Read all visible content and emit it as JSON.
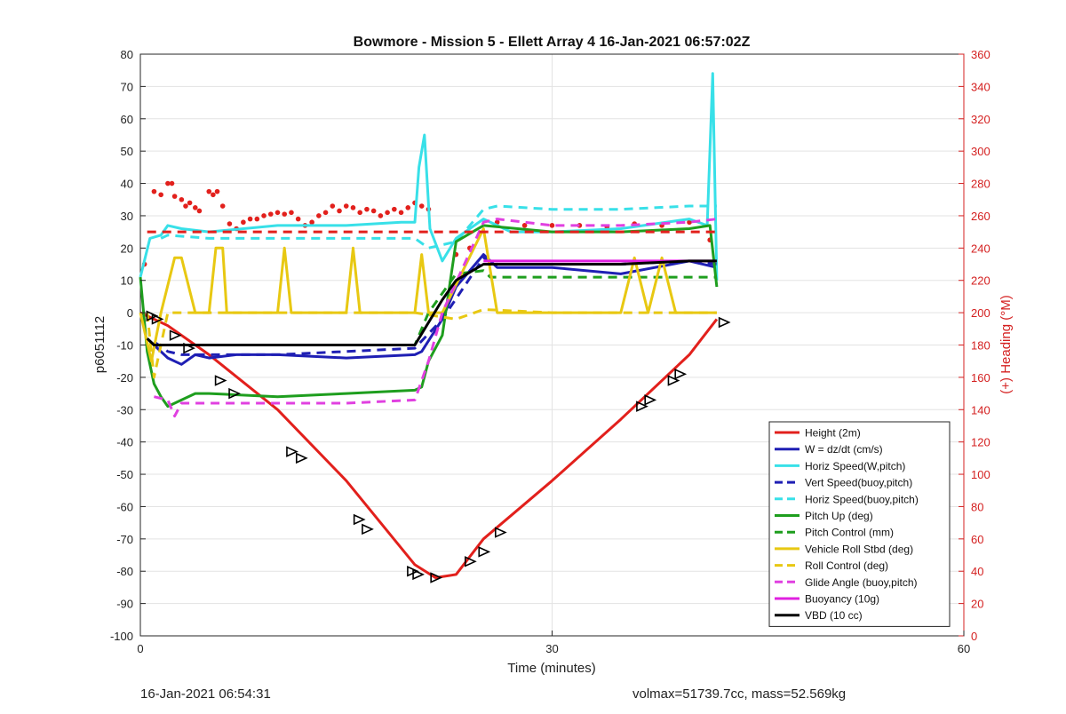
{
  "chart_data": {
    "type": "line",
    "title": "Bowmore - Mission 5 - Ellett Array 4 16-Jan-2021 06:57:02Z",
    "xlabel": "Time (minutes)",
    "ylabel": "p6051112",
    "y2label": "(+) Heading (°M)",
    "xlim": [
      0,
      60
    ],
    "ylim": [
      -100,
      80
    ],
    "y2lim": [
      0,
      360
    ],
    "xticks": [
      "0",
      "30",
      "60"
    ],
    "yticks": [
      "80",
      "70",
      "60",
      "50",
      "40",
      "30",
      "20",
      "10",
      "0",
      "-10",
      "-20",
      "-30",
      "-40",
      "-50",
      "-60",
      "-70",
      "-80",
      "-90",
      "-100"
    ],
    "y2ticks": [
      "360",
      "340",
      "320",
      "300",
      "280",
      "260",
      "240",
      "220",
      "200",
      "180",
      "160",
      "140",
      "120",
      "100",
      "80",
      "60",
      "40",
      "20",
      "0"
    ],
    "grid": true,
    "legend_position": "lower-right",
    "series": [
      {
        "name": "Height (2m)",
        "color": "#e2201c",
        "style": "solid",
        "x": [
          0,
          2,
          5,
          10,
          15,
          20,
          21.5,
          23,
          25,
          30,
          35,
          40,
          42
        ],
        "y": [
          0,
          -4,
          -13,
          -30,
          -52,
          -78,
          -82,
          -81,
          -70,
          -52,
          -33,
          -13,
          -2
        ]
      },
      {
        "name": "W = dz/dt (cm/s)",
        "color": "#1f1fb4",
        "style": "solid",
        "x": [
          0.5,
          1,
          2,
          3,
          4,
          5,
          7,
          10,
          15,
          20,
          20.5,
          22,
          23,
          25,
          26,
          30,
          35,
          40,
          42
        ],
        "y": [
          -8,
          -10,
          -14,
          -16,
          -13,
          -14,
          -13,
          -13,
          -14,
          -13,
          -12,
          -2,
          8,
          18,
          14,
          14,
          12,
          16,
          14
        ]
      },
      {
        "name": "Horiz Speed(W,pitch)",
        "color": "#38e0e8",
        "style": "solid",
        "x": [
          0,
          0.7,
          1.5,
          2,
          3,
          5,
          10,
          15,
          19,
          20,
          20.3,
          20.7,
          21.1,
          22,
          23,
          25,
          27,
          30,
          35,
          40,
          41.3,
          41.7,
          42
        ],
        "y": [
          11,
          23,
          24,
          27,
          26,
          25,
          27,
          27,
          28,
          28,
          45,
          55,
          26,
          16,
          23,
          29,
          25,
          25,
          26,
          29,
          27,
          74,
          10
        ]
      },
      {
        "name": "Vert Speed(buoy,pitch)",
        "color": "#1f1fb4",
        "style": "dashed",
        "x": [
          1,
          2,
          3,
          5,
          10,
          15,
          20,
          22,
          25,
          26,
          30,
          35,
          40,
          42
        ],
        "y": [
          -9,
          -12,
          -13,
          -13,
          -13,
          -12,
          -11,
          -2,
          17,
          15,
          15,
          15,
          16,
          15
        ]
      },
      {
        "name": "Horiz Speed(buoy,pitch)",
        "color": "#38e0e8",
        "style": "dashed",
        "x": [
          1.5,
          2,
          5,
          10,
          15,
          20,
          21,
          23,
          25,
          26,
          30,
          35,
          40,
          42
        ],
        "y": [
          23,
          24,
          23,
          23,
          23,
          23,
          20,
          22,
          32,
          33,
          32,
          32,
          33,
          33
        ]
      },
      {
        "name": "Pitch Up (deg)",
        "color": "#1e9e1e",
        "style": "solid",
        "x": [
          0,
          0.5,
          1,
          1.5,
          2,
          3,
          4,
          5,
          10,
          15,
          20,
          20.5,
          21,
          22,
          23,
          25,
          30,
          35,
          40,
          41.5,
          42
        ],
        "y": [
          11,
          -12,
          -22,
          -26,
          -29,
          -27,
          -25,
          -25,
          -26,
          -25,
          -24,
          -23,
          -15,
          -7,
          22,
          27,
          25,
          25,
          26,
          27,
          8
        ]
      },
      {
        "name": "Pitch Control (mm)",
        "color": "#1e9e1e",
        "style": "dashed",
        "x": [
          1,
          2,
          5,
          10,
          15,
          20,
          21,
          23,
          25,
          25.5,
          30,
          35,
          40,
          42
        ],
        "y": [
          -10,
          -10,
          -10,
          -10,
          -10,
          -10,
          0,
          12,
          13,
          11,
          11,
          11,
          11,
          11
        ]
      },
      {
        "name": "Vehicle Roll Stbd (deg)",
        "color": "#e8c812",
        "style": "solid",
        "x": [
          0,
          0.8,
          1.5,
          2.5,
          3,
          4,
          5,
          5.5,
          6,
          6.3,
          7,
          10,
          10.5,
          11,
          15,
          15.5,
          16,
          20,
          20.5,
          21,
          22,
          25,
          26,
          30,
          35,
          36,
          37,
          38,
          39,
          40,
          42
        ],
        "y": [
          0,
          -15,
          0,
          17,
          17,
          0,
          0,
          20,
          20,
          0,
          0,
          0,
          20,
          0,
          0,
          20,
          0,
          0,
          18,
          0,
          0,
          26,
          0,
          0,
          0,
          17,
          0,
          17,
          0,
          0,
          0
        ]
      },
      {
        "name": "Roll Control (deg)",
        "color": "#e8c812",
        "style": "dashed",
        "x": [
          0.5,
          1,
          2,
          3,
          5,
          10,
          15,
          20,
          23,
          25,
          30,
          35,
          40,
          42
        ],
        "y": [
          0,
          -20,
          0,
          0,
          0,
          0,
          0,
          0,
          -2,
          1,
          0,
          0,
          0,
          0
        ]
      },
      {
        "name": "Glide Angle (buoy,pitch)",
        "color": "#e040e0",
        "style": "dashed",
        "x": [
          1,
          2,
          2.5,
          3,
          5,
          10,
          15,
          20,
          21,
          22,
          25,
          26,
          30,
          35,
          40,
          42
        ],
        "y": [
          -26,
          -27,
          -32,
          -28,
          -28,
          -28,
          -28,
          -27,
          -15,
          0,
          28,
          29,
          27,
          27,
          28,
          29
        ]
      },
      {
        "name": "Buoyancy (10g)",
        "color": "#e020e0",
        "style": "solid",
        "x": [
          25,
          30,
          35,
          40,
          42
        ],
        "y": [
          16,
          16,
          16,
          16,
          16
        ]
      },
      {
        "name": "VBD (10 cc)",
        "color": "#000000",
        "style": "solid",
        "x": [
          0.5,
          1,
          2,
          5,
          10,
          15,
          20,
          22,
          23,
          25,
          30,
          35,
          40,
          42
        ],
        "y": [
          -8,
          -10,
          -10,
          -10,
          -10,
          -10,
          -10,
          4,
          10,
          15,
          15,
          15,
          16,
          16
        ]
      },
      {
        "name": "",
        "color": "#e2201c",
        "style": "dashed",
        "x": [
          0.5,
          42
        ],
        "y": [
          25,
          25
        ]
      }
    ],
    "heading_dots": {
      "color": "#e2201c",
      "x": [
        0.3,
        1,
        1.5,
        2,
        2.3,
        2.5,
        3,
        3.3,
        3.6,
        4,
        4.3,
        5,
        5.3,
        5.6,
        6,
        6.5,
        7,
        7.5,
        8,
        8.5,
        9,
        9.5,
        10,
        10.5,
        11,
        11.5,
        12,
        12.5,
        13,
        13.5,
        14,
        14.5,
        15,
        15.5,
        16,
        16.5,
        17,
        17.5,
        18,
        18.5,
        19,
        19.5,
        20,
        20.5,
        21,
        23,
        24,
        26,
        28,
        30,
        32,
        34,
        36,
        38,
        40,
        41.5
      ],
      "y": [
        230,
        275,
        273,
        280,
        280,
        272,
        270,
        266,
        268,
        265,
        263,
        275,
        273,
        275,
        266,
        255,
        252,
        256,
        258,
        258,
        260,
        261,
        262,
        261,
        262,
        258,
        254,
        256,
        260,
        262,
        266,
        263,
        266,
        265,
        262,
        264,
        263,
        260,
        262,
        264,
        262,
        265,
        268,
        266,
        264,
        236,
        240,
        256,
        254,
        254,
        254,
        253,
        255,
        254,
        256,
        245
      ]
    },
    "markers": {
      "style": "black-triangles",
      "x": [
        0.8,
        1.2,
        2.5,
        3.5,
        5.8,
        6.8,
        11,
        11.7,
        15.9,
        16.5,
        19.8,
        20.2,
        21.5,
        24,
        25,
        26.2,
        36.5,
        37.1,
        38.8,
        39.3,
        42.5
      ],
      "y": [
        -1,
        -2,
        -7,
        -11,
        -21,
        -25,
        -43,
        -45,
        -64,
        -67,
        -80,
        -81,
        -82,
        -77,
        -74,
        -68,
        -29,
        -27,
        -21,
        -19,
        -3
      ]
    }
  },
  "footer": {
    "left": "16-Jan-2021 06:54:31",
    "right": "volmax=51739.7cc, mass=52.569kg"
  }
}
